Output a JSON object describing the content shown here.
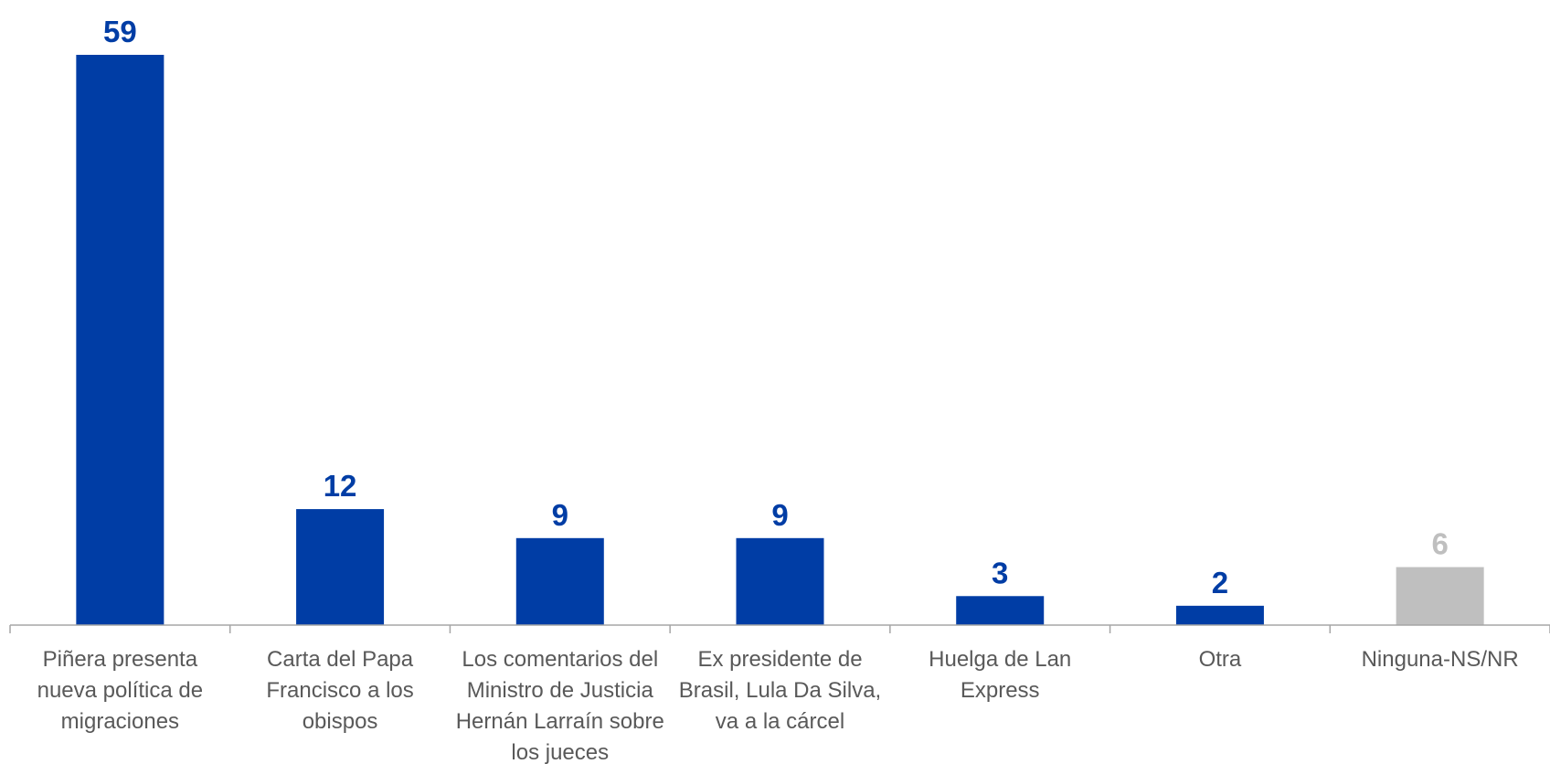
{
  "chart_data": {
    "type": "bar",
    "categories": [
      [
        "Piñera presenta",
        "nueva política de",
        "migraciones"
      ],
      [
        "Carta del Papa",
        "Francisco a los",
        "obispos"
      ],
      [
        "Los comentarios del",
        "Ministro de Justicia",
        "Hernán Larraín sobre",
        "los jueces"
      ],
      [
        "Ex presidente de",
        "Brasil, Lula Da Silva,",
        "va a la cárcel"
      ],
      [
        "Huelga de Lan",
        "Express"
      ],
      [
        "Otra"
      ],
      [
        "Ninguna-NS/NR"
      ]
    ],
    "values": [
      59,
      12,
      9,
      9,
      3,
      2,
      6
    ],
    "bar_colors": [
      "#003DA5",
      "#003DA5",
      "#003DA5",
      "#003DA5",
      "#003DA5",
      "#003DA5",
      "#BFBFBF"
    ],
    "label_colors": [
      "#003DA5",
      "#003DA5",
      "#003DA5",
      "#003DA5",
      "#003DA5",
      "#003DA5",
      "#BFBFBF"
    ],
    "axis_color": "#A6A6A6",
    "ylim": [
      0,
      59
    ],
    "grid": false,
    "legend": "none",
    "title": "",
    "xlabel": "",
    "ylabel": ""
  }
}
